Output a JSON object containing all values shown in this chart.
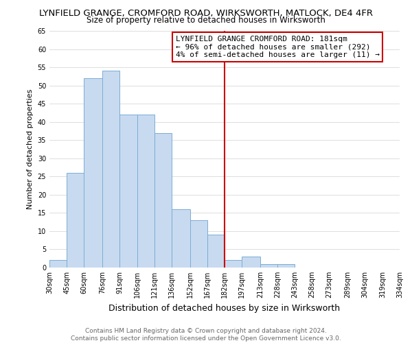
{
  "title": "LYNFIELD GRANGE, CROMFORD ROAD, WIRKSWORTH, MATLOCK, DE4 4FR",
  "subtitle": "Size of property relative to detached houses in Wirksworth",
  "xlabel": "Distribution of detached houses by size in Wirksworth",
  "ylabel": "Number of detached properties",
  "bar_edges": [
    30,
    45,
    60,
    76,
    91,
    106,
    121,
    136,
    152,
    167,
    182,
    197,
    213,
    228,
    243,
    258,
    273,
    289,
    304,
    319,
    334
  ],
  "bar_heights": [
    2,
    26,
    52,
    54,
    42,
    42,
    37,
    16,
    13,
    9,
    2,
    3,
    1,
    1,
    0,
    0,
    0,
    0,
    0,
    0
  ],
  "bar_color": "#c8daf0",
  "bar_edge_color": "#7aadd4",
  "vline_x": 182,
  "vline_color": "#cc0000",
  "ylim": [
    0,
    65
  ],
  "annotation_title": "LYNFIELD GRANGE CROMFORD ROAD: 181sqm",
  "annotation_line1": "← 96% of detached houses are smaller (292)",
  "annotation_line2": "4% of semi-detached houses are larger (11) →",
  "annotation_box_color": "#ffffff",
  "annotation_box_edge": "#cc0000",
  "footer1": "Contains HM Land Registry data © Crown copyright and database right 2024.",
  "footer2": "Contains public sector information licensed under the Open Government Licence v3.0.",
  "title_fontsize": 9.5,
  "subtitle_fontsize": 8.5,
  "xlabel_fontsize": 9,
  "ylabel_fontsize": 8,
  "tick_fontsize": 7,
  "annotation_fontsize": 8,
  "footer_fontsize": 6.5,
  "yticks": [
    0,
    5,
    10,
    15,
    20,
    25,
    30,
    35,
    40,
    45,
    50,
    55,
    60,
    65
  ]
}
